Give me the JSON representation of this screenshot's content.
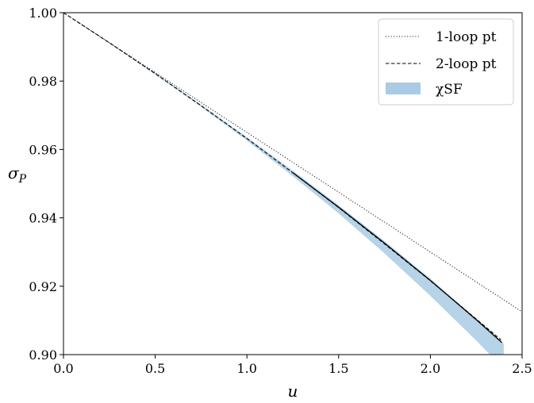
{
  "chart_data": {
    "type": "line",
    "title": "",
    "xlabel": "u",
    "ylabel_main": "σ",
    "ylabel_sub": "P",
    "xlim": [
      0.0,
      2.5
    ],
    "ylim": [
      0.9,
      1.0
    ],
    "xticks": [
      0.0,
      0.5,
      1.0,
      1.5,
      2.0,
      2.5
    ],
    "xtick_labels": [
      "0.0",
      "0.5",
      "1.0",
      "1.5",
      "2.0",
      "2.5"
    ],
    "yticks": [
      0.9,
      0.92,
      0.94,
      0.96,
      0.98,
      1.0
    ],
    "ytick_labels": [
      "0.90",
      "0.92",
      "0.94",
      "0.96",
      "0.98",
      "1.00"
    ],
    "grid": false,
    "legend_position": "top-right",
    "series": [
      {
        "name": "1-loop pt",
        "style": "dotted",
        "color": "#000000",
        "x": [
          0.0,
          0.5,
          1.0,
          1.5,
          2.0,
          2.5
        ],
        "y": [
          1.0,
          0.9825,
          0.965,
          0.9475,
          0.93,
          0.9125
        ]
      },
      {
        "name": "2-loop pt",
        "style": "dashed",
        "color": "#000000",
        "x": [
          0.0,
          0.25,
          0.5,
          0.75,
          1.0,
          1.25,
          1.5,
          1.75,
          2.0,
          2.25,
          2.385
        ],
        "y": [
          1.0,
          0.9912,
          0.9822,
          0.9728,
          0.9632,
          0.9532,
          0.943,
          0.9324,
          0.9216,
          0.9104,
          0.9043
        ]
      },
      {
        "name": "χSF",
        "style": "band",
        "color": "#a9cbe3",
        "x": [
          0.0,
          0.25,
          0.5,
          0.75,
          1.0,
          1.25,
          1.5,
          1.75,
          2.0,
          2.25,
          2.4
        ],
        "y": [
          1.0,
          0.9911,
          0.9821,
          0.9728,
          0.9631,
          0.953,
          0.9425,
          0.9314,
          0.9197,
          0.9073,
          0.8995
        ],
        "y_lower": [
          1.0,
          0.991,
          0.9819,
          0.9725,
          0.9626,
          0.9522,
          0.9413,
          0.9296,
          0.9172,
          0.9041,
          0.8958
        ],
        "y_upper": [
          1.0,
          0.9912,
          0.9823,
          0.9731,
          0.9636,
          0.9538,
          0.9437,
          0.9332,
          0.9222,
          0.9105,
          0.9032
        ]
      }
    ],
    "extra_line": {
      "style": "solid",
      "color": "#000000",
      "x": [
        1.25,
        1.5,
        1.75,
        2.0,
        2.25,
        2.39
      ],
      "y": [
        0.9532,
        0.9431,
        0.9326,
        0.9217,
        0.9102,
        0.9035
      ]
    }
  }
}
